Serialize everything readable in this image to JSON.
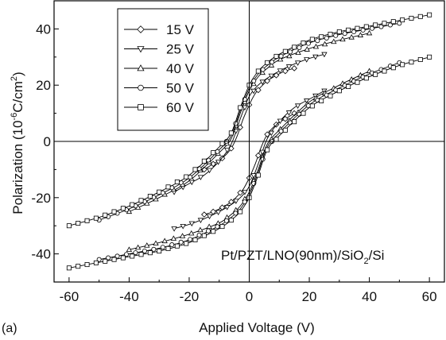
{
  "chart_data": {
    "type": "line",
    "panel_label": "(a)",
    "xlabel": "Applied Voltage (V)",
    "ylabel": {
      "text": "Polarization (10",
      "sup1": "-6",
      "mid": "C/cm",
      "sup2": "2",
      "end": ")"
    },
    "xlim": [
      -65,
      65
    ],
    "ylim": [
      -50,
      50
    ],
    "xticks": [
      -60,
      -40,
      -20,
      0,
      20,
      40,
      60
    ],
    "yticks": [
      -40,
      -20,
      0,
      20,
      40
    ],
    "xtick_labels": [
      "-60",
      "-40",
      "-20",
      "0",
      "20",
      "40",
      "60"
    ],
    "ytick_labels": [
      "-40",
      "-20",
      "0",
      "20",
      "40"
    ],
    "grid": false,
    "zero_lines": true,
    "legend_position": "top-left",
    "annotation": {
      "parts": [
        "Pt/PZT/LNO(90nm)/SiO",
        "2",
        "/Si"
      ]
    },
    "series": [
      {
        "name": "15 V",
        "marker": "diamond",
        "x": [
          -15,
          -12,
          -9,
          -6,
          -4,
          -2,
          0,
          2,
          4,
          6,
          9,
          12,
          15
        ],
        "upper": [
          -10,
          -8,
          -6,
          -2.5,
          2,
          8,
          13,
          17,
          19.5,
          21.5,
          23.5,
          25,
          26
        ],
        "lower": [
          -26,
          -25,
          -23.5,
          -21.5,
          -19.5,
          -17,
          -13,
          -8,
          -2,
          2.5,
          6,
          8,
          10
        ]
      },
      {
        "name": "25 V",
        "marker": "triangle-down",
        "x": [
          -25,
          -20,
          -15,
          -10,
          -6,
          -3,
          0,
          3,
          6,
          10,
          15,
          20,
          25
        ],
        "upper": [
          -18,
          -15,
          -12,
          -7,
          -1,
          8,
          16,
          20,
          22.5,
          25,
          27.5,
          29.5,
          31
        ],
        "lower": [
          -31,
          -29.5,
          -27.5,
          -25,
          -22.5,
          -20,
          -16,
          -8,
          1,
          7,
          12,
          15,
          18
        ]
      },
      {
        "name": "40 V",
        "marker": "triangle-up",
        "x": [
          -40,
          -30,
          -20,
          -10,
          -6,
          -3,
          0,
          3,
          6,
          10,
          20,
          30,
          40
        ],
        "upper": [
          -25,
          -20,
          -14,
          -4,
          1,
          10,
          18,
          23,
          26,
          29,
          33,
          36,
          38.5
        ],
        "lower": [
          -38.5,
          -36,
          -33,
          -29,
          -26,
          -23,
          -18,
          -10,
          -1,
          4,
          14,
          20,
          25
        ]
      },
      {
        "name": "50 V",
        "marker": "circle",
        "x": [
          -50,
          -40,
          -30,
          -20,
          -10,
          -6,
          -3,
          0,
          3,
          6,
          10,
          20,
          30,
          40,
          50
        ],
        "upper": [
          -28,
          -24,
          -19,
          -13,
          -3,
          2,
          11,
          19,
          24,
          27,
          30,
          35,
          38,
          40,
          42
        ],
        "lower": [
          -42,
          -40,
          -38,
          -35,
          -30,
          -27,
          -24,
          -19,
          -11,
          -2,
          3,
          13,
          19,
          24,
          28
        ]
      },
      {
        "name": "60 V",
        "marker": "square",
        "x": [
          -60,
          -50,
          -40,
          -30,
          -20,
          -10,
          -6,
          -3,
          0,
          3,
          6,
          10,
          20,
          30,
          40,
          50,
          60
        ],
        "upper": [
          -30,
          -27,
          -23,
          -18,
          -12,
          -2,
          3,
          12,
          20,
          25,
          28,
          31,
          36,
          39,
          41,
          43,
          45
        ],
        "lower": [
          -45,
          -43,
          -41,
          -39,
          -36,
          -31,
          -28,
          -25,
          -20,
          -12,
          -3,
          2,
          12,
          18,
          23,
          27,
          30
        ]
      }
    ]
  }
}
